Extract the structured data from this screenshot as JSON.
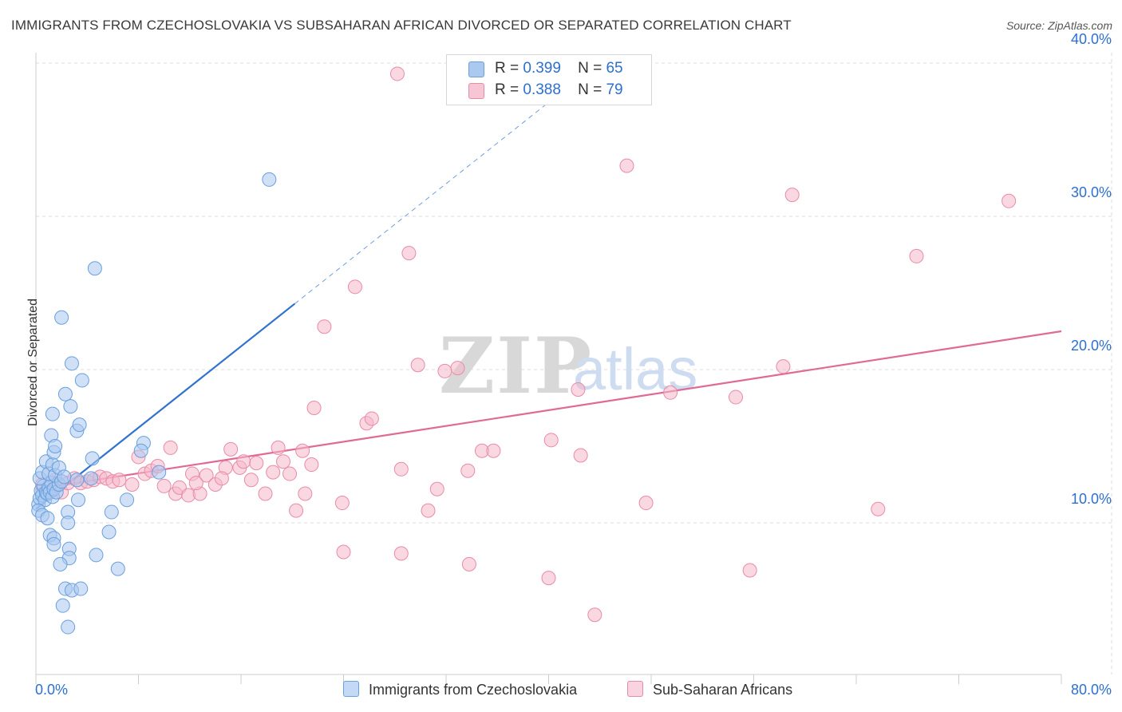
{
  "title": "IMMIGRANTS FROM CZECHOSLOVAKIA VS SUBSAHARAN AFRICAN DIVORCED OR SEPARATED CORRELATION CHART",
  "source": "Source: ZipAtlas.com",
  "watermark": {
    "part1": "ZIP",
    "part2": "atlas"
  },
  "colors": {
    "blue_fill": "#aac8f0",
    "blue_stroke": "#6a9fdc",
    "blue_line": "#2f72d0",
    "pink_fill": "#f6b8cb",
    "pink_stroke": "#e98aa8",
    "pink_line": "#e06a95",
    "accent_text": "#2d6fd0",
    "grid": "#dddddd"
  },
  "legend": {
    "rows": [
      {
        "r_label": "R =",
        "r_value": "0.399",
        "n_label": "N =",
        "n_value": "65"
      },
      {
        "r_label": "R =",
        "r_value": "0.388",
        "n_label": "N =",
        "n_value": "79"
      }
    ]
  },
  "bottom_legend": {
    "series1": "Immigrants from Czechoslovakia",
    "series2": "Sub-Saharan Africans"
  },
  "chart_data": {
    "type": "scatter",
    "title": "IMMIGRANTS FROM CZECHOSLOVAKIA VS SUBSAHARAN AFRICAN DIVORCED OR SEPARATED CORRELATION CHART",
    "xlabel": "",
    "ylabel": "Divorced or Separated",
    "xlim": [
      0,
      80
    ],
    "ylim": [
      0,
      42
    ],
    "x_tick_labels": [
      "0.0%",
      "80.0%"
    ],
    "y_ticks": [
      10,
      20,
      30,
      40
    ],
    "y_tick_labels": [
      "10.0%",
      "20.0%",
      "30.0%",
      "40.0%"
    ],
    "grid": true,
    "series": [
      {
        "name": "Immigrants from Czechoslovakia",
        "r": 0.399,
        "n": 65,
        "trend": {
          "x0": 0,
          "y0": 10.9,
          "x1": 20.2,
          "y1": 24.3,
          "dashed_to_x": 42.5
        },
        "points": [
          [
            0.2,
            11.2
          ],
          [
            0.3,
            11.6
          ],
          [
            0.4,
            12.1
          ],
          [
            0.5,
            11.8
          ],
          [
            0.6,
            12.4
          ],
          [
            0.7,
            11.5
          ],
          [
            0.8,
            12.0
          ],
          [
            0.9,
            11.9
          ],
          [
            1.0,
            12.3
          ],
          [
            1.1,
            12.0
          ],
          [
            1.2,
            12.6
          ],
          [
            1.3,
            11.7
          ],
          [
            1.4,
            12.2
          ],
          [
            1.6,
            12.0
          ],
          [
            1.8,
            12.5
          ],
          [
            0.3,
            12.9
          ],
          [
            0.5,
            13.3
          ],
          [
            0.8,
            14.0
          ],
          [
            1.0,
            13.2
          ],
          [
            1.3,
            13.8
          ],
          [
            1.5,
            13.1
          ],
          [
            1.8,
            13.6
          ],
          [
            2.0,
            12.7
          ],
          [
            0.2,
            10.8
          ],
          [
            0.5,
            10.5
          ],
          [
            0.9,
            10.3
          ],
          [
            2.2,
            13.0
          ],
          [
            3.2,
            12.8
          ],
          [
            4.3,
            12.9
          ],
          [
            1.2,
            15.7
          ],
          [
            1.4,
            14.6
          ],
          [
            1.5,
            15.0
          ],
          [
            1.3,
            17.1
          ],
          [
            2.3,
            18.4
          ],
          [
            2.7,
            17.6
          ],
          [
            2.8,
            20.4
          ],
          [
            3.2,
            16.0
          ],
          [
            3.4,
            16.4
          ],
          [
            3.6,
            19.3
          ],
          [
            2.0,
            23.4
          ],
          [
            4.6,
            26.6
          ],
          [
            18.2,
            32.4
          ],
          [
            4.4,
            14.2
          ],
          [
            8.4,
            15.2
          ],
          [
            8.2,
            14.7
          ],
          [
            9.6,
            13.3
          ],
          [
            2.5,
            10.7
          ],
          [
            2.5,
            10.0
          ],
          [
            3.3,
            11.5
          ],
          [
            5.9,
            10.7
          ],
          [
            7.1,
            11.5
          ],
          [
            1.1,
            9.2
          ],
          [
            1.4,
            9.0
          ],
          [
            1.4,
            8.6
          ],
          [
            2.6,
            8.3
          ],
          [
            2.6,
            7.7
          ],
          [
            1.9,
            7.3
          ],
          [
            4.7,
            7.9
          ],
          [
            6.4,
            7.0
          ],
          [
            5.7,
            9.4
          ],
          [
            2.3,
            5.7
          ],
          [
            2.8,
            5.6
          ],
          [
            3.5,
            5.7
          ],
          [
            2.1,
            4.6
          ],
          [
            2.5,
            3.2
          ]
        ]
      },
      {
        "name": "Sub-Saharan Africans",
        "r": 0.388,
        "n": 79,
        "trend": {
          "x0": 0,
          "y0": 12.2,
          "x1": 80,
          "y1": 22.5
        },
        "points": [
          [
            0.5,
            12.5
          ],
          [
            1.0,
            12.3
          ],
          [
            1.5,
            12.8
          ],
          [
            2.0,
            12.0
          ],
          [
            2.5,
            12.6
          ],
          [
            3.0,
            12.9
          ],
          [
            3.5,
            12.6
          ],
          [
            4.0,
            12.7
          ],
          [
            4.5,
            12.8
          ],
          [
            5.0,
            13.0
          ],
          [
            5.5,
            12.9
          ],
          [
            6.0,
            12.7
          ],
          [
            6.5,
            12.8
          ],
          [
            7.5,
            12.5
          ],
          [
            8.5,
            13.2
          ],
          [
            9.0,
            13.4
          ],
          [
            9.5,
            13.7
          ],
          [
            10.0,
            12.4
          ],
          [
            10.5,
            14.9
          ],
          [
            10.9,
            11.9
          ],
          [
            11.2,
            12.3
          ],
          [
            11.9,
            11.8
          ],
          [
            12.2,
            13.2
          ],
          [
            12.8,
            11.9
          ],
          [
            13.3,
            13.1
          ],
          [
            14.0,
            12.5
          ],
          [
            14.8,
            13.6
          ],
          [
            15.2,
            14.8
          ],
          [
            15.9,
            13.6
          ],
          [
            16.2,
            14.0
          ],
          [
            16.8,
            12.8
          ],
          [
            17.2,
            13.9
          ],
          [
            17.9,
            11.9
          ],
          [
            18.5,
            13.3
          ],
          [
            18.9,
            14.9
          ],
          [
            19.3,
            14.0
          ],
          [
            19.8,
            13.2
          ],
          [
            20.3,
            10.8
          ],
          [
            20.8,
            14.7
          ],
          [
            21.5,
            13.8
          ],
          [
            21.7,
            17.5
          ],
          [
            22.5,
            22.8
          ],
          [
            23.9,
            11.3
          ],
          [
            24.9,
            25.4
          ],
          [
            25.8,
            16.5
          ],
          [
            26.2,
            16.8
          ],
          [
            28.5,
            13.5
          ],
          [
            29.1,
            27.6
          ],
          [
            29.8,
            20.3
          ],
          [
            30.6,
            10.8
          ],
          [
            31.3,
            12.2
          ],
          [
            31.9,
            19.9
          ],
          [
            32.9,
            20.1
          ],
          [
            33.7,
            13.4
          ],
          [
            34.8,
            14.7
          ],
          [
            35.7,
            14.7
          ],
          [
            40.2,
            15.4
          ],
          [
            40.0,
            6.4
          ],
          [
            42.3,
            18.7
          ],
          [
            42.5,
            14.4
          ],
          [
            43.6,
            4.0
          ],
          [
            46.1,
            33.3
          ],
          [
            47.6,
            11.3
          ],
          [
            49.5,
            18.5
          ],
          [
            54.6,
            18.2
          ],
          [
            55.7,
            6.9
          ],
          [
            58.3,
            20.2
          ],
          [
            59.0,
            31.4
          ],
          [
            65.7,
            10.9
          ],
          [
            68.7,
            27.4
          ],
          [
            75.9,
            31.0
          ],
          [
            28.2,
            39.3
          ],
          [
            24.0,
            8.1
          ],
          [
            28.5,
            8.0
          ],
          [
            33.8,
            7.3
          ],
          [
            14.5,
            12.9
          ],
          [
            12.5,
            12.6
          ],
          [
            8.0,
            14.3
          ],
          [
            21.0,
            11.9
          ]
        ]
      }
    ]
  }
}
